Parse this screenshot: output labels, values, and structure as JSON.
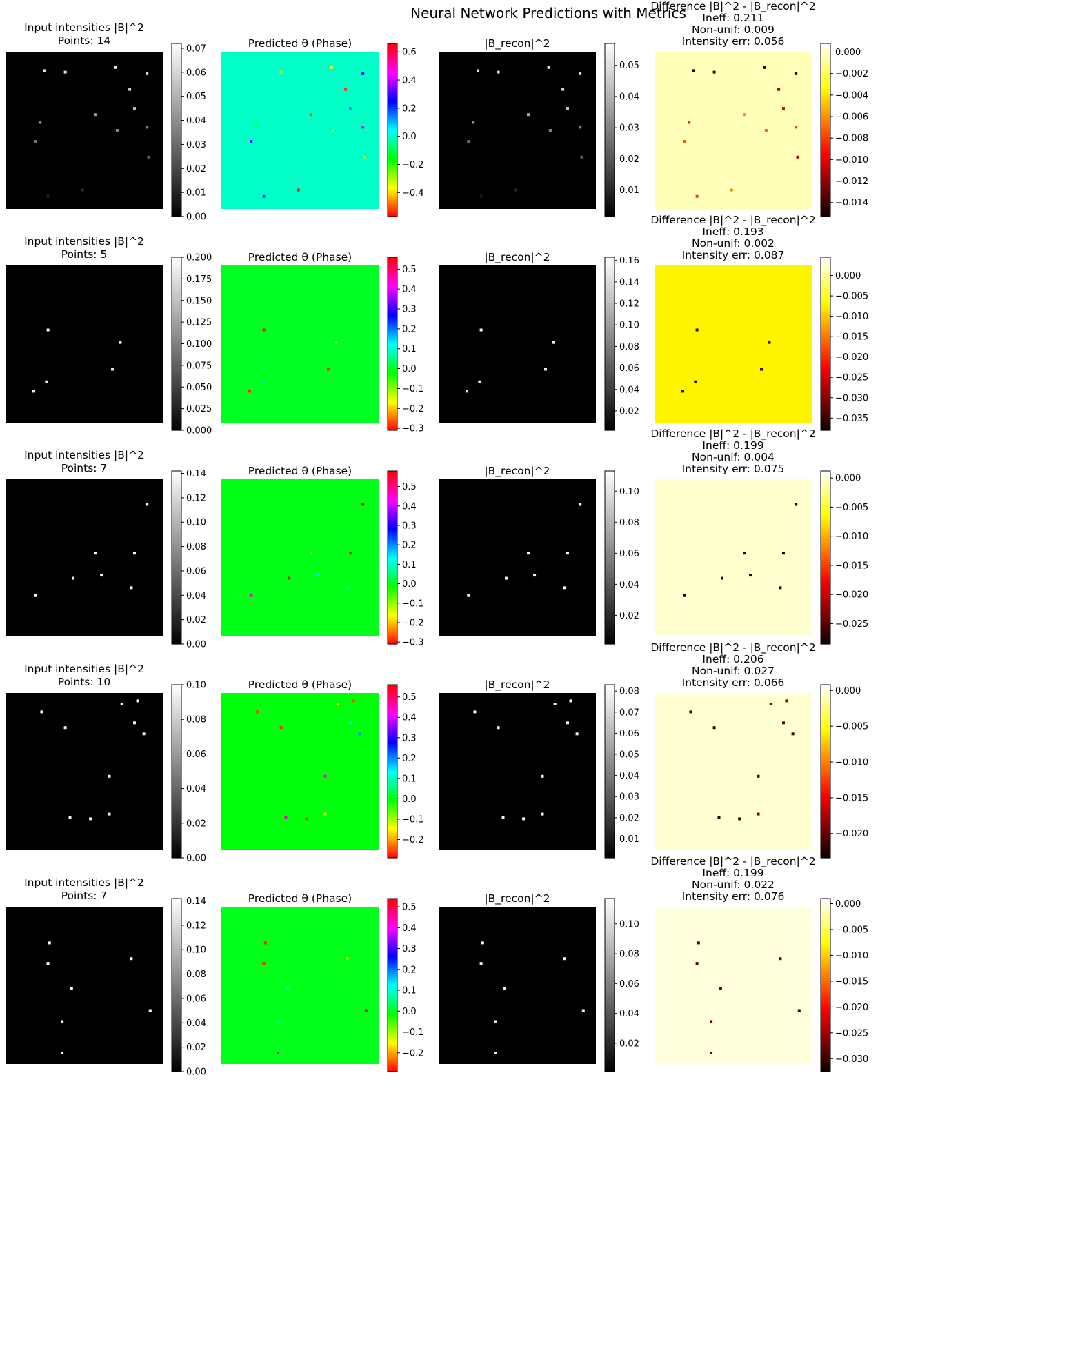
{
  "suptitle": "Neural Network Predictions with Metrics",
  "chart_data": {
    "type": "heatmap",
    "grid": "off",
    "rows": [
      {
        "points": 14,
        "input_title": "Input intensities |B|^2",
        "points_label": "Points: 14",
        "phase_title": "Predicted θ (Phase)",
        "recon_title": "|B_recon|^2",
        "diff_title": "Difference |B|^2 - |B_recon|^2",
        "ineff_label": "Ineff: 0.211",
        "nonunif_label": "Non-unif: 0.009",
        "interr_label": "Intensity err: 0.056",
        "input_ticks": [
          "0.00",
          "0.01",
          "0.02",
          "0.03",
          "0.04",
          "0.05",
          "0.06",
          "0.07"
        ],
        "phase_ticks": [
          "−0.4",
          "−0.2",
          "0.0",
          "0.2",
          "0.4",
          "0.6"
        ],
        "recon_ticks": [
          "0.01",
          "0.02",
          "0.03",
          "0.04",
          "0.05"
        ],
        "diff_ticks": [
          "−0.014",
          "−0.012",
          "−0.010",
          "−0.008",
          "−0.006",
          "−0.004",
          "−0.002",
          "0.000"
        ],
        "input_range": [
          0,
          0.072
        ],
        "phase_range": [
          -0.57,
          0.66
        ],
        "recon_range": [
          0.0015,
          0.057
        ],
        "diff_range": [
          -0.0153,
          0.0008
        ],
        "phase_background": 0.0,
        "diff_background": -0.0003,
        "spots": [
          {
            "x": 0.25,
            "y": 0.88,
            "input": 0.064,
            "phase": 0.05,
            "recon": 0.05,
            "diff": -0.015
          },
          {
            "x": 0.38,
            "y": 0.87,
            "input": 0.063,
            "phase": -0.35,
            "recon": 0.049,
            "diff": -0.0142
          },
          {
            "x": 0.7,
            "y": 0.9,
            "input": 0.065,
            "phase": -0.37,
            "recon": 0.051,
            "diff": -0.0148
          },
          {
            "x": 0.9,
            "y": 0.86,
            "input": 0.061,
            "phase": 0.25,
            "recon": 0.048,
            "diff": -0.014
          },
          {
            "x": 0.79,
            "y": 0.76,
            "input": 0.058,
            "phase": -0.53,
            "recon": 0.047,
            "diff": -0.0115
          },
          {
            "x": 0.82,
            "y": 0.64,
            "input": 0.054,
            "phase": 0.15,
            "recon": 0.045,
            "diff": -0.01
          },
          {
            "x": 0.57,
            "y": 0.6,
            "input": 0.044,
            "phase": -0.5,
            "recon": 0.038,
            "diff": -0.006
          },
          {
            "x": 0.22,
            "y": 0.55,
            "input": 0.04,
            "phase": -0.22,
            "recon": 0.032,
            "diff": -0.0085
          },
          {
            "x": 0.71,
            "y": 0.5,
            "input": 0.038,
            "phase": -0.4,
            "recon": 0.031,
            "diff": -0.007
          },
          {
            "x": 0.9,
            "y": 0.52,
            "input": 0.037,
            "phase": 0.45,
            "recon": 0.03,
            "diff": -0.008
          },
          {
            "x": 0.19,
            "y": 0.43,
            "input": 0.033,
            "phase": 0.28,
            "recon": 0.026,
            "diff": -0.0075
          },
          {
            "x": 0.91,
            "y": 0.33,
            "input": 0.028,
            "phase": -0.33,
            "recon": 0.022,
            "diff": -0.012
          },
          {
            "x": 0.49,
            "y": 0.12,
            "input": 0.013,
            "phase": -0.55,
            "recon": 0.01,
            "diff": -0.0062
          },
          {
            "x": 0.27,
            "y": 0.08,
            "input": 0.009,
            "phase": 0.2,
            "recon": 0.007,
            "diff": -0.008
          }
        ]
      },
      {
        "points": 5,
        "input_title": "Input intensities |B|^2",
        "points_label": "Points: 5",
        "phase_title": "Predicted θ (Phase)",
        "recon_title": "|B_recon|^2",
        "diff_title": "Difference |B|^2 - |B_recon|^2",
        "ineff_label": "Ineff: 0.193",
        "nonunif_label": "Non-unif: 0.002",
        "interr_label": "Intensity err: 0.087",
        "input_ticks": [
          "0.000",
          "0.025",
          "0.050",
          "0.075",
          "0.100",
          "0.125",
          "0.150",
          "0.175",
          "0.200"
        ],
        "phase_ticks": [
          "−0.3",
          "−0.2",
          "−0.1",
          "0.0",
          "0.1",
          "0.2",
          "0.3",
          "0.4",
          "0.5"
        ],
        "recon_ticks": [
          "0.02",
          "0.04",
          "0.06",
          "0.08",
          "0.10",
          "0.12",
          "0.14",
          "0.16"
        ],
        "diff_ticks": [
          "−0.035",
          "−0.030",
          "−0.025",
          "−0.020",
          "−0.015",
          "−0.010",
          "−0.005",
          "0.000"
        ],
        "input_range": [
          0,
          0.2
        ],
        "phase_range": [
          -0.31,
          0.56
        ],
        "recon_range": [
          0.002,
          0.163
        ],
        "diff_range": [
          -0.038,
          0.0045
        ],
        "phase_background": 0.0,
        "diff_background": -0.007,
        "spots": [
          {
            "x": 0.27,
            "y": 0.59,
            "input": 0.19,
            "phase": -0.3,
            "recon": 0.155,
            "diff": -0.036
          },
          {
            "x": 0.73,
            "y": 0.51,
            "input": 0.185,
            "phase": -0.1,
            "recon": 0.15,
            "diff": -0.035
          },
          {
            "x": 0.68,
            "y": 0.34,
            "input": 0.18,
            "phase": -0.28,
            "recon": 0.148,
            "diff": -0.034
          },
          {
            "x": 0.26,
            "y": 0.26,
            "input": 0.18,
            "phase": 0.15,
            "recon": 0.145,
            "diff": -0.035
          },
          {
            "x": 0.18,
            "y": 0.2,
            "input": 0.185,
            "phase": -0.29,
            "recon": 0.15,
            "diff": -0.036
          }
        ]
      },
      {
        "points": 7,
        "input_title": "Input intensities |B|^2",
        "points_label": "Points: 7",
        "phase_title": "Predicted θ (Phase)",
        "recon_title": "|B_recon|^2",
        "diff_title": "Difference |B|^2 - |B_recon|^2",
        "ineff_label": "Ineff: 0.199",
        "nonunif_label": "Non-unif: 0.004",
        "interr_label": "Intensity err: 0.075",
        "input_ticks": [
          "0.00",
          "0.02",
          "0.04",
          "0.06",
          "0.08",
          "0.10",
          "0.12",
          "0.14"
        ],
        "phase_ticks": [
          "−0.3",
          "−0.2",
          "−0.1",
          "0.0",
          "0.1",
          "0.2",
          "0.3",
          "0.4",
          "0.5"
        ],
        "recon_ticks": [
          "0.02",
          "0.04",
          "0.06",
          "0.08",
          "0.10"
        ],
        "diff_ticks": [
          "−0.025",
          "−0.020",
          "−0.015",
          "−0.010",
          "−0.005",
          "0.000"
        ],
        "input_range": [
          0,
          0.142
        ],
        "phase_range": [
          -0.31,
          0.58
        ],
        "recon_range": [
          0.0015,
          0.113
        ],
        "diff_range": [
          -0.0285,
          0.0012
        ],
        "phase_background": 0.0,
        "diff_background": -0.0002,
        "spots": [
          {
            "x": 0.9,
            "y": 0.84,
            "input": 0.14,
            "phase": -0.3,
            "recon": 0.11,
            "diff": -0.028
          },
          {
            "x": 0.57,
            "y": 0.53,
            "input": 0.14,
            "phase": -0.1,
            "recon": 0.11,
            "diff": -0.027
          },
          {
            "x": 0.82,
            "y": 0.53,
            "input": 0.14,
            "phase": -0.29,
            "recon": 0.11,
            "diff": -0.028
          },
          {
            "x": 0.43,
            "y": 0.37,
            "input": 0.138,
            "phase": -0.3,
            "recon": 0.11,
            "diff": -0.027
          },
          {
            "x": 0.61,
            "y": 0.39,
            "input": 0.14,
            "phase": 0.15,
            "recon": 0.111,
            "diff": -0.028
          },
          {
            "x": 0.8,
            "y": 0.31,
            "input": 0.138,
            "phase": 0.05,
            "recon": 0.11,
            "diff": -0.027
          },
          {
            "x": 0.19,
            "y": 0.26,
            "input": 0.14,
            "phase": 0.45,
            "recon": 0.11,
            "diff": -0.028
          }
        ]
      },
      {
        "points": 10,
        "input_title": "Input intensities |B|^2",
        "points_label": "Points: 10",
        "phase_title": "Predicted θ (Phase)",
        "recon_title": "|B_recon|^2",
        "diff_title": "Difference |B|^2 - |B_recon|^2",
        "ineff_label": "Ineff: 0.206",
        "nonunif_label": "Non-unif: 0.027",
        "interr_label": "Intensity err: 0.066",
        "input_ticks": [
          "0.00",
          "0.02",
          "0.04",
          "0.06",
          "0.08",
          "0.10"
        ],
        "phase_ticks": [
          "−0.2",
          "−0.1",
          "0.0",
          "0.1",
          "0.2",
          "0.3",
          "0.4",
          "0.5"
        ],
        "recon_ticks": [
          "0.01",
          "0.02",
          "0.03",
          "0.04",
          "0.05",
          "0.06",
          "0.07",
          "0.08"
        ],
        "diff_ticks": [
          "−0.020",
          "−0.015",
          "−0.010",
          "−0.005",
          "0.000"
        ],
        "input_range": [
          0,
          0.1
        ],
        "phase_range": [
          -0.29,
          0.56
        ],
        "recon_range": [
          0.001,
          0.083
        ],
        "diff_range": [
          -0.0234,
          0.0008
        ],
        "phase_background": 0.0,
        "diff_background": -0.0003,
        "spots": [
          {
            "x": 0.23,
            "y": 0.88,
            "input": 0.095,
            "phase": -0.26,
            "recon": 0.08,
            "diff": -0.021
          },
          {
            "x": 0.74,
            "y": 0.93,
            "input": 0.095,
            "phase": -0.15,
            "recon": 0.08,
            "diff": -0.02
          },
          {
            "x": 0.84,
            "y": 0.95,
            "input": 0.096,
            "phase": -0.25,
            "recon": 0.08,
            "diff": -0.019
          },
          {
            "x": 0.38,
            "y": 0.78,
            "input": 0.094,
            "phase": -0.27,
            "recon": 0.078,
            "diff": -0.022
          },
          {
            "x": 0.82,
            "y": 0.81,
            "input": 0.096,
            "phase": 0.15,
            "recon": 0.079,
            "diff": -0.02
          },
          {
            "x": 0.88,
            "y": 0.74,
            "input": 0.095,
            "phase": 0.2,
            "recon": 0.08,
            "diff": -0.022
          },
          {
            "x": 0.66,
            "y": 0.47,
            "input": 0.095,
            "phase": 0.42,
            "recon": 0.079,
            "diff": -0.021
          },
          {
            "x": 0.66,
            "y": 0.23,
            "input": 0.094,
            "phase": -0.14,
            "recon": 0.078,
            "diff": -0.02
          },
          {
            "x": 0.41,
            "y": 0.21,
            "input": 0.095,
            "phase": 0.45,
            "recon": 0.08,
            "diff": -0.022
          },
          {
            "x": 0.54,
            "y": 0.2,
            "input": 0.095,
            "phase": -0.25,
            "recon": 0.079,
            "diff": -0.021
          }
        ]
      },
      {
        "points": 7,
        "input_title": "Input intensities |B|^2",
        "points_label": "Points: 7",
        "phase_title": "Predicted θ (Phase)",
        "recon_title": "|B_recon|^2",
        "diff_title": "Difference |B|^2 - |B_recon|^2",
        "ineff_label": "Ineff: 0.199",
        "nonunif_label": "Non-unif: 0.022",
        "interr_label": "Intensity err: 0.076",
        "input_ticks": [
          "0.00",
          "0.02",
          "0.04",
          "0.06",
          "0.08",
          "0.10",
          "0.12",
          "0.14"
        ],
        "phase_ticks": [
          "−0.2",
          "−0.1",
          "0.0",
          "0.1",
          "0.2",
          "0.3",
          "0.4",
          "0.5"
        ],
        "recon_ticks": [
          "0.02",
          "0.04",
          "0.06",
          "0.08",
          "0.10"
        ],
        "diff_ticks": [
          "−0.030",
          "−0.025",
          "−0.020",
          "−0.015",
          "−0.010",
          "−0.005",
          "0.000"
        ],
        "input_range": [
          0,
          0.142
        ],
        "phase_range": [
          -0.29,
          0.54
        ],
        "recon_range": [
          0.001,
          0.117
        ],
        "diff_range": [
          -0.0325,
          0.001
        ],
        "phase_background": 0.0,
        "diff_background": -0.0002,
        "spots": [
          {
            "x": 0.28,
            "y": 0.77,
            "input": 0.14,
            "phase": -0.27,
            "recon": 0.112,
            "diff": -0.03
          },
          {
            "x": 0.27,
            "y": 0.64,
            "input": 0.138,
            "phase": -0.27,
            "recon": 0.11,
            "diff": -0.028
          },
          {
            "x": 0.8,
            "y": 0.67,
            "input": 0.138,
            "phase": -0.15,
            "recon": 0.11,
            "diff": -0.028
          },
          {
            "x": 0.42,
            "y": 0.48,
            "input": 0.138,
            "phase": 0.08,
            "recon": 0.11,
            "diff": -0.029
          },
          {
            "x": 0.92,
            "y": 0.34,
            "input": 0.14,
            "phase": -0.28,
            "recon": 0.112,
            "diff": -0.031
          },
          {
            "x": 0.36,
            "y": 0.27,
            "input": 0.138,
            "phase": 0.08,
            "recon": 0.11,
            "diff": -0.027
          },
          {
            "x": 0.36,
            "y": 0.07,
            "input": 0.138,
            "phase": 0.45,
            "recon": 0.11,
            "diff": -0.028
          }
        ]
      }
    ]
  }
}
